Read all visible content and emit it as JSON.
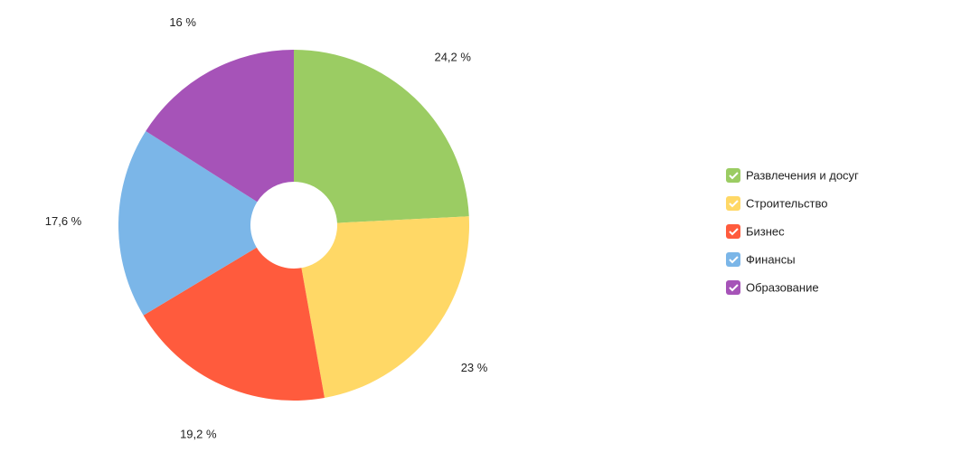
{
  "chart_data": {
    "type": "donut",
    "categories": [
      "Развлечения и досуг",
      "Строительство",
      "Бизнес",
      "Финансы",
      "Образование"
    ],
    "values": [
      24.2,
      23,
      19.2,
      17.6,
      16
    ],
    "value_labels": [
      "24,2 %",
      "23 %",
      "19,2 %",
      "17,6 %",
      "16 %"
    ],
    "colors": [
      "#9bcc63",
      "#ffd866",
      "#ff5b3d",
      "#7bb6e8",
      "#a653b8"
    ],
    "legend": "right"
  }
}
